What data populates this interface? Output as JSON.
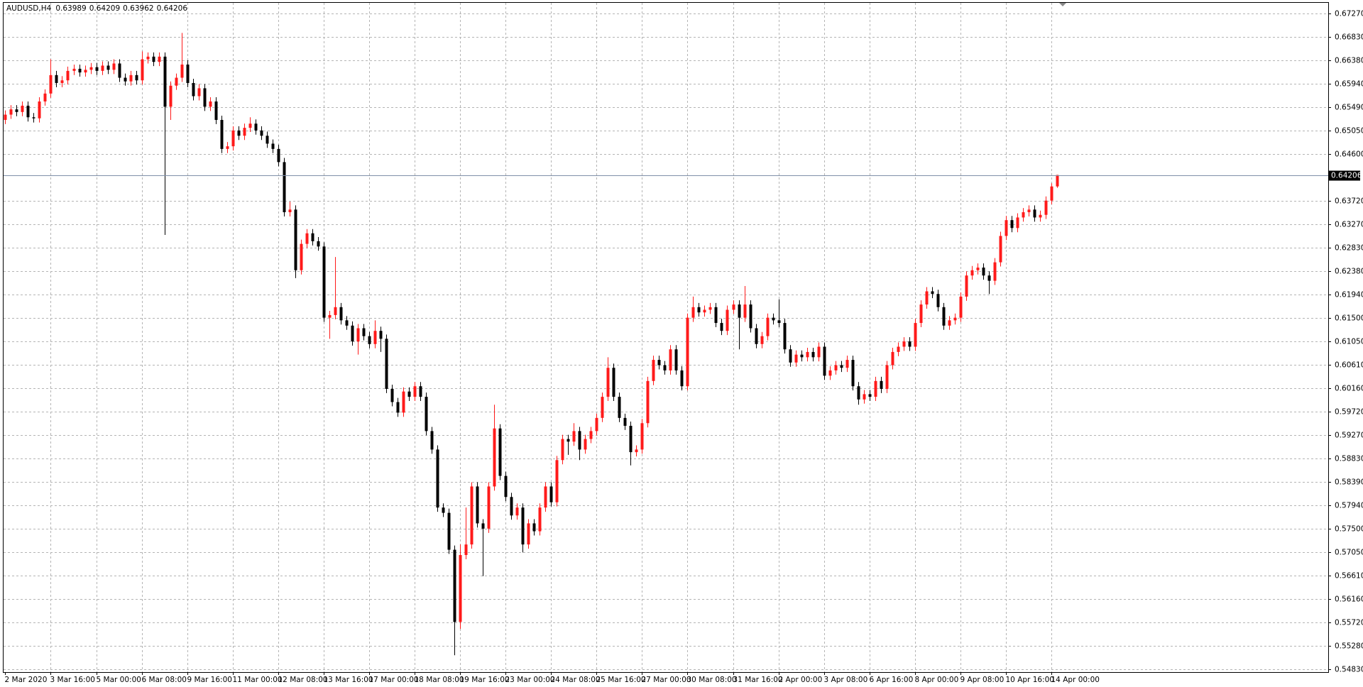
{
  "chart_data": {
    "type": "candlestick",
    "title": "AUDUSD,H4",
    "up_color": "#ff1a1a",
    "down_color": "#000000",
    "grid": true,
    "last_price_line": true,
    "xlim": [
      -0.3,
      232.7
    ],
    "ylim": [
      0.5478,
      0.6747
    ],
    "xticks": [
      {
        "value": 0,
        "label": "2 Mar 2020"
      },
      {
        "value": 8,
        "label": "3 Mar 16:00"
      },
      {
        "value": 16,
        "label": "5 Mar 00:00"
      },
      {
        "value": 24,
        "label": "6 Mar 08:00"
      },
      {
        "value": 32,
        "label": "9 Mar 16:00"
      },
      {
        "value": 40,
        "label": "11 Mar 00:00"
      },
      {
        "value": 48,
        "label": "12 Mar 08:00"
      },
      {
        "value": 56,
        "label": "13 Mar 16:00"
      },
      {
        "value": 64,
        "label": "17 Mar 00:00"
      },
      {
        "value": 72,
        "label": "18 Mar 08:00"
      },
      {
        "value": 80,
        "label": "19 Mar 16:00"
      },
      {
        "value": 88,
        "label": "23 Mar 00:00"
      },
      {
        "value": 96,
        "label": "24 Mar 08:00"
      },
      {
        "value": 104,
        "label": "25 Mar 16:00"
      },
      {
        "value": 112,
        "label": "27 Mar 00:00"
      },
      {
        "value": 120,
        "label": "30 Mar 08:00"
      },
      {
        "value": 128,
        "label": "31 Mar 16:00"
      },
      {
        "value": 136,
        "label": "2 Apr 00:00"
      },
      {
        "value": 144,
        "label": "3 Apr 08:00"
      },
      {
        "value": 152,
        "label": "6 Apr 16:00"
      },
      {
        "value": 160,
        "label": "8 Apr 00:00"
      },
      {
        "value": 168,
        "label": "9 Apr 08:00"
      },
      {
        "value": 176,
        "label": "10 Apr 16:00"
      },
      {
        "value": 184,
        "label": "14 Apr 00:00"
      }
    ],
    "yticks": [
      {
        "value": 0.6727,
        "label": "0.67270"
      },
      {
        "value": 0.6683,
        "label": "0.66830"
      },
      {
        "value": 0.6638,
        "label": "0.66380"
      },
      {
        "value": 0.6594,
        "label": "0.65940"
      },
      {
        "value": 0.6549,
        "label": "0.65490"
      },
      {
        "value": 0.6505,
        "label": "0.65050"
      },
      {
        "value": 0.646,
        "label": "0.64600"
      },
      {
        "value": 0.6372,
        "label": "0.63720"
      },
      {
        "value": 0.6327,
        "label": "0.63270"
      },
      {
        "value": 0.6283,
        "label": "0.62830"
      },
      {
        "value": 0.6238,
        "label": "0.62380"
      },
      {
        "value": 0.6194,
        "label": "0.61940"
      },
      {
        "value": 0.615,
        "label": "0.61500"
      },
      {
        "value": 0.6105,
        "label": "0.61050"
      },
      {
        "value": 0.6061,
        "label": "0.60610"
      },
      {
        "value": 0.6016,
        "label": "0.60160"
      },
      {
        "value": 0.5972,
        "label": "0.59720"
      },
      {
        "value": 0.5927,
        "label": "0.59270"
      },
      {
        "value": 0.5883,
        "label": "0.58830"
      },
      {
        "value": 0.5839,
        "label": "0.58390"
      },
      {
        "value": 0.5794,
        "label": "0.57940"
      },
      {
        "value": 0.575,
        "label": "0.57500"
      },
      {
        "value": 0.5705,
        "label": "0.57050"
      },
      {
        "value": 0.5661,
        "label": "0.56610"
      },
      {
        "value": 0.5616,
        "label": "0.56160"
      },
      {
        "value": 0.5572,
        "label": "0.55720"
      },
      {
        "value": 0.5528,
        "label": "0.55280"
      },
      {
        "value": 0.5483,
        "label": "0.54830"
      }
    ],
    "open": [
      0.6525,
      0.6535,
      0.6545,
      0.654,
      0.6552,
      0.653,
      0.6528,
      0.656,
      0.6575,
      0.661,
      0.6595,
      0.66,
      0.6618,
      0.6622,
      0.6615,
      0.662,
      0.6625,
      0.6618,
      0.6628,
      0.662,
      0.6632,
      0.6605,
      0.6598,
      0.661,
      0.66,
      0.664,
      0.6645,
      0.6635,
      0.6645,
      0.655,
      0.659,
      0.6605,
      0.663,
      0.6595,
      0.657,
      0.6585,
      0.655,
      0.656,
      0.6525,
      0.647,
      0.6475,
      0.6505,
      0.6495,
      0.651,
      0.6518,
      0.6505,
      0.6495,
      0.648,
      0.647,
      0.6445,
      0.635,
      0.6355,
      0.624,
      0.629,
      0.631,
      0.6295,
      0.6285,
      0.615,
      0.6155,
      0.617,
      0.6145,
      0.6135,
      0.6105,
      0.613,
      0.6115,
      0.61,
      0.6125,
      0.611,
      0.6015,
      0.599,
      0.597,
      0.601,
      0.6,
      0.602,
      0.6,
      0.5935,
      0.59,
      0.579,
      0.578,
      0.571,
      0.5573,
      0.57,
      0.572,
      0.583,
      0.576,
      0.575,
      0.583,
      0.594,
      0.585,
      0.581,
      0.5775,
      0.579,
      0.572,
      0.576,
      0.5745,
      0.579,
      0.583,
      0.58,
      0.588,
      0.592,
      0.5915,
      0.5935,
      0.59,
      0.592,
      0.5935,
      0.596,
      0.6,
      0.6055,
      0.6,
      0.596,
      0.5945,
      0.5895,
      0.59,
      0.595,
      0.603,
      0.607,
      0.606,
      0.605,
      0.609,
      0.605,
      0.602,
      0.615,
      0.617,
      0.616,
      0.6165,
      0.617,
      0.614,
      0.6125,
      0.6165,
      0.6175,
      0.615,
      0.6175,
      0.613,
      0.61,
      0.6115,
      0.615,
      0.6145,
      0.614,
      0.609,
      0.6065,
      0.608,
      0.6075,
      0.6085,
      0.6075,
      0.6095,
      0.604,
      0.605,
      0.606,
      0.6055,
      0.607,
      0.602,
      0.5995,
      0.6005,
      0.6,
      0.603,
      0.6015,
      0.606,
      0.6085,
      0.6095,
      0.6105,
      0.6095,
      0.614,
      0.6175,
      0.62,
      0.6195,
      0.617,
      0.6135,
      0.6145,
      0.615,
      0.619,
      0.623,
      0.624,
      0.6245,
      0.623,
      0.622,
      0.6255,
      0.6305,
      0.6335,
      0.632,
      0.634,
      0.635,
      0.6355,
      0.634,
      0.6345,
      0.6372,
      0.63989
    ],
    "high": [
      0.6543,
      0.6553,
      0.6553,
      0.656,
      0.656,
      0.6538,
      0.6568,
      0.6583,
      0.664,
      0.6618,
      0.6608,
      0.6626,
      0.663,
      0.663,
      0.6628,
      0.6633,
      0.6633,
      0.6636,
      0.6636,
      0.664,
      0.664,
      0.6613,
      0.6618,
      0.6618,
      0.6655,
      0.6653,
      0.6653,
      0.6653,
      0.6653,
      0.6598,
      0.6613,
      0.669,
      0.6638,
      0.6603,
      0.6593,
      0.6593,
      0.6568,
      0.6568,
      0.6533,
      0.6483,
      0.6513,
      0.6513,
      0.6518,
      0.653,
      0.6526,
      0.6513,
      0.6503,
      0.6488,
      0.6478,
      0.6453,
      0.637,
      0.6363,
      0.6298,
      0.6318,
      0.6318,
      0.6303,
      0.6293,
      0.6163,
      0.6265,
      0.6178,
      0.6153,
      0.6143,
      0.6138,
      0.6138,
      0.6123,
      0.6145,
      0.6133,
      0.6118,
      0.6023,
      0.5998,
      0.6018,
      0.6018,
      0.6028,
      0.6028,
      0.6008,
      0.5943,
      0.5908,
      0.5798,
      0.5788,
      0.5718,
      0.572,
      0.579,
      0.5838,
      0.5838,
      0.5768,
      0.5838,
      0.5985,
      0.5948,
      0.5858,
      0.5818,
      0.5798,
      0.5798,
      0.5768,
      0.5768,
      0.5798,
      0.5838,
      0.5838,
      0.5888,
      0.5928,
      0.5928,
      0.595,
      0.5943,
      0.5928,
      0.5943,
      0.5968,
      0.6008,
      0.6075,
      0.6063,
      0.6008,
      0.5968,
      0.5953,
      0.5908,
      0.5958,
      0.6038,
      0.6078,
      0.6078,
      0.6068,
      0.6098,
      0.6098,
      0.6058,
      0.6158,
      0.619,
      0.6178,
      0.6173,
      0.6178,
      0.6178,
      0.6148,
      0.6173,
      0.6183,
      0.6183,
      0.621,
      0.6183,
      0.6138,
      0.6123,
      0.6158,
      0.6158,
      0.6185,
      0.6148,
      0.6098,
      0.6088,
      0.6088,
      0.6093,
      0.6093,
      0.6103,
      0.6103,
      0.6058,
      0.6068,
      0.6068,
      0.6078,
      0.6078,
      0.6028,
      0.6013,
      0.6013,
      0.6038,
      0.6038,
      0.6068,
      0.6093,
      0.6103,
      0.6113,
      0.6113,
      0.6148,
      0.6183,
      0.6208,
      0.6208,
      0.6203,
      0.6178,
      0.6153,
      0.6158,
      0.6198,
      0.6238,
      0.6248,
      0.6253,
      0.6253,
      0.6238,
      0.6263,
      0.6313,
      0.6343,
      0.6343,
      0.6348,
      0.6358,
      0.6363,
      0.6363,
      0.6353,
      0.638,
      0.6405,
      0.64209
    ],
    "low": [
      0.6517,
      0.6527,
      0.6532,
      0.6532,
      0.6522,
      0.652,
      0.652,
      0.6552,
      0.6567,
      0.6587,
      0.6587,
      0.6592,
      0.661,
      0.6607,
      0.6607,
      0.6612,
      0.661,
      0.661,
      0.6612,
      0.6612,
      0.6597,
      0.659,
      0.659,
      0.6592,
      0.6592,
      0.6632,
      0.6627,
      0.6627,
      0.6307,
      0.6525,
      0.6582,
      0.6597,
      0.6587,
      0.6562,
      0.6562,
      0.6542,
      0.6542,
      0.6517,
      0.6462,
      0.6462,
      0.6467,
      0.6487,
      0.6487,
      0.6502,
      0.6497,
      0.6487,
      0.6472,
      0.6462,
      0.6437,
      0.6342,
      0.6342,
      0.6225,
      0.6232,
      0.6282,
      0.6287,
      0.6277,
      0.6142,
      0.611,
      0.6147,
      0.6137,
      0.6127,
      0.6097,
      0.608,
      0.6107,
      0.6092,
      0.6092,
      0.6085,
      0.6007,
      0.5982,
      0.5962,
      0.5962,
      0.5992,
      0.5992,
      0.5992,
      0.5927,
      0.5892,
      0.5782,
      0.5772,
      0.5702,
      0.551,
      0.556,
      0.5692,
      0.5712,
      0.5752,
      0.566,
      0.5742,
      0.5822,
      0.5842,
      0.5802,
      0.5767,
      0.5767,
      0.5705,
      0.5712,
      0.5737,
      0.5737,
      0.5782,
      0.5792,
      0.5792,
      0.5872,
      0.589,
      0.5907,
      0.588,
      0.5892,
      0.5912,
      0.5927,
      0.5952,
      0.5992,
      0.5992,
      0.5952,
      0.5937,
      0.587,
      0.5887,
      0.5892,
      0.5942,
      0.6022,
      0.6052,
      0.6042,
      0.6042,
      0.6042,
      0.6012,
      0.6012,
      0.6142,
      0.6152,
      0.6152,
      0.6157,
      0.6132,
      0.6117,
      0.6117,
      0.6157,
      0.609,
      0.6142,
      0.6122,
      0.6092,
      0.6092,
      0.6107,
      0.6137,
      0.6132,
      0.6082,
      0.6057,
      0.6057,
      0.6067,
      0.6067,
      0.6067,
      0.6067,
      0.6032,
      0.6032,
      0.6042,
      0.6047,
      0.6047,
      0.6012,
      0.5985,
      0.5987,
      0.5992,
      0.5992,
      0.6007,
      0.6007,
      0.6052,
      0.6077,
      0.6087,
      0.6087,
      0.6087,
      0.6132,
      0.6167,
      0.6187,
      0.6162,
      0.6127,
      0.6127,
      0.6137,
      0.6142,
      0.6182,
      0.6222,
      0.6232,
      0.6222,
      0.6195,
      0.6212,
      0.6247,
      0.6297,
      0.6312,
      0.6312,
      0.6332,
      0.6342,
      0.6332,
      0.6332,
      0.6337,
      0.6365,
      0.63962
    ],
    "close": [
      0.6535,
      0.6545,
      0.654,
      0.6552,
      0.653,
      0.6528,
      0.656,
      0.6575,
      0.661,
      0.6595,
      0.66,
      0.6618,
      0.6622,
      0.6615,
      0.662,
      0.6625,
      0.6618,
      0.6628,
      0.662,
      0.6632,
      0.6605,
      0.6598,
      0.661,
      0.66,
      0.664,
      0.6645,
      0.6635,
      0.6645,
      0.655,
      0.659,
      0.6605,
      0.663,
      0.6595,
      0.657,
      0.6585,
      0.655,
      0.656,
      0.6525,
      0.647,
      0.6475,
      0.6505,
      0.6495,
      0.651,
      0.6518,
      0.6505,
      0.6495,
      0.648,
      0.647,
      0.6445,
      0.635,
      0.6355,
      0.624,
      0.629,
      0.631,
      0.6295,
      0.6285,
      0.615,
      0.6155,
      0.617,
      0.6145,
      0.6135,
      0.6105,
      0.613,
      0.6115,
      0.61,
      0.6125,
      0.611,
      0.6015,
      0.599,
      0.597,
      0.601,
      0.6,
      0.602,
      0.6,
      0.5935,
      0.59,
      0.579,
      0.578,
      0.571,
      0.5573,
      0.57,
      0.572,
      0.583,
      0.576,
      0.575,
      0.583,
      0.594,
      0.585,
      0.581,
      0.5775,
      0.579,
      0.572,
      0.576,
      0.5745,
      0.579,
      0.583,
      0.58,
      0.588,
      0.592,
      0.5915,
      0.5935,
      0.59,
      0.592,
      0.5935,
      0.596,
      0.6,
      0.6055,
      0.6,
      0.596,
      0.5945,
      0.5895,
      0.59,
      0.595,
      0.603,
      0.607,
      0.606,
      0.605,
      0.609,
      0.605,
      0.602,
      0.615,
      0.617,
      0.616,
      0.6165,
      0.617,
      0.614,
      0.6125,
      0.6165,
      0.6175,
      0.615,
      0.6175,
      0.613,
      0.61,
      0.6115,
      0.615,
      0.6145,
      0.614,
      0.609,
      0.6065,
      0.608,
      0.6075,
      0.6085,
      0.6075,
      0.6095,
      0.604,
      0.605,
      0.606,
      0.6055,
      0.607,
      0.602,
      0.5995,
      0.6005,
      0.6,
      0.603,
      0.6015,
      0.606,
      0.6085,
      0.6095,
      0.6105,
      0.6095,
      0.614,
      0.6175,
      0.62,
      0.6195,
      0.617,
      0.6135,
      0.6145,
      0.615,
      0.619,
      0.623,
      0.624,
      0.6245,
      0.623,
      0.622,
      0.6255,
      0.6305,
      0.6335,
      0.632,
      0.634,
      0.635,
      0.6355,
      0.634,
      0.6345,
      0.6372,
      0.63989,
      0.64206
    ]
  }
}
